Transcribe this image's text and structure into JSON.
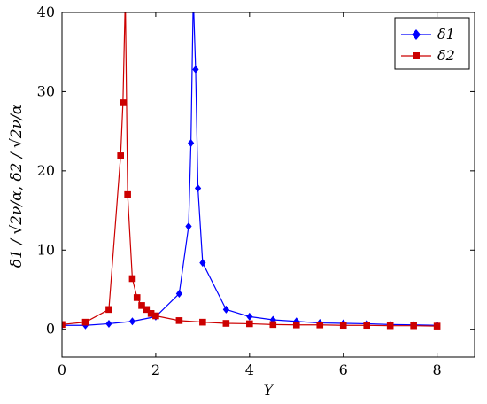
{
  "chart_data": {
    "type": "line",
    "xlabel": "Υ",
    "ylabel": "δ1 / √2ν/α, δ2 / √2ν/α",
    "xlim": [
      0,
      8.8
    ],
    "ylim": [
      -3.5,
      40
    ],
    "x_ticks": [
      "0",
      "2",
      "4",
      "6",
      "8"
    ],
    "y_ticks": [
      "0",
      "10",
      "20",
      "30",
      "40"
    ],
    "grid": false,
    "legend_position": "top-right",
    "series": [
      {
        "name": "δ1",
        "color": "#0000ff",
        "marker": "diamond",
        "points": [
          [
            0,
            0.5
          ],
          [
            0.5,
            0.5
          ],
          [
            1,
            0.7
          ],
          [
            1.5,
            1.0
          ],
          [
            2,
            1.6
          ],
          [
            2.5,
            4.5
          ],
          [
            2.7,
            13.0
          ],
          [
            2.75,
            23.5
          ],
          [
            2.8,
            42.0
          ],
          [
            2.85,
            32.8
          ],
          [
            2.9,
            17.8
          ],
          [
            3.0,
            8.4
          ],
          [
            3.5,
            2.5
          ],
          [
            4,
            1.6
          ],
          [
            4.5,
            1.2
          ],
          [
            5,
            1.0
          ],
          [
            5.5,
            0.8
          ],
          [
            6,
            0.75
          ],
          [
            6.5,
            0.7
          ],
          [
            7,
            0.6
          ],
          [
            7.5,
            0.55
          ],
          [
            8,
            0.5
          ]
        ]
      },
      {
        "name": "δ2",
        "color": "#cc0000",
        "marker": "square",
        "points": [
          [
            0,
            0.6
          ],
          [
            0.5,
            0.9
          ],
          [
            1,
            2.5
          ],
          [
            1.25,
            21.9
          ],
          [
            1.3,
            28.6
          ],
          [
            1.35,
            42.0
          ],
          [
            1.4,
            17.0
          ],
          [
            1.5,
            6.4
          ],
          [
            1.6,
            4.0
          ],
          [
            1.7,
            3.0
          ],
          [
            1.8,
            2.5
          ],
          [
            1.9,
            2.0
          ],
          [
            2,
            1.7
          ],
          [
            2.5,
            1.1
          ],
          [
            3,
            0.9
          ],
          [
            3.5,
            0.75
          ],
          [
            4,
            0.7
          ],
          [
            4.5,
            0.6
          ],
          [
            5,
            0.55
          ],
          [
            5.5,
            0.55
          ],
          [
            6,
            0.5
          ],
          [
            6.5,
            0.5
          ],
          [
            7,
            0.45
          ],
          [
            7.5,
            0.45
          ],
          [
            8,
            0.4
          ]
        ]
      }
    ]
  }
}
